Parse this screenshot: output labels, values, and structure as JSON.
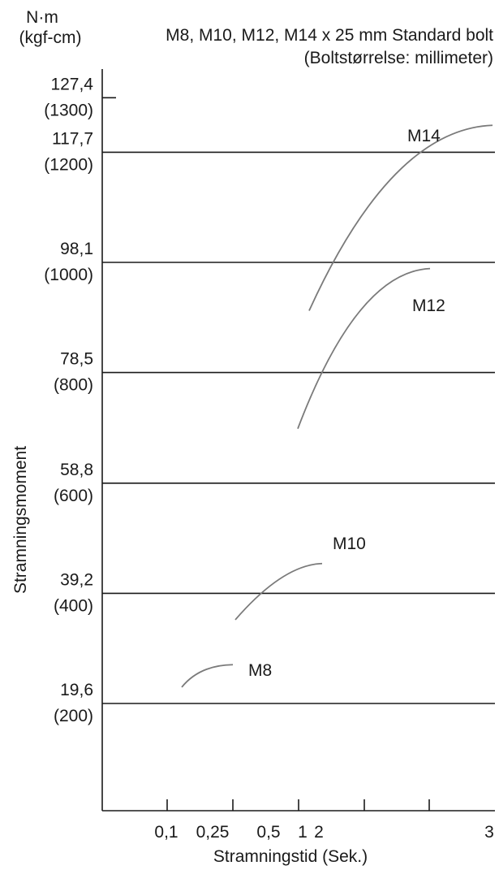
{
  "header": {
    "unit_top": "N·m",
    "unit_bottom": "(kgf-cm)",
    "title": "M8, M10, M12, M14 x 25 mm Standard bolt",
    "subtitle": "(Boltstørrelse: millimeter)"
  },
  "chart_data": {
    "type": "line",
    "title": "M8, M10, M12, M14 x 25 mm Standard bolt",
    "subtitle": "(Boltstørrelse: millimeter)",
    "xlabel": "Stramningstid (Sek.)",
    "ylabel": "Stramningsmoment",
    "y_unit_primary": "N·m",
    "y_unit_secondary": "(kgf-cm)",
    "x_tick_labels": [
      "0,1",
      "0,25",
      "0,5",
      "1",
      "2",
      "3"
    ],
    "y_ticks": [
      {
        "value": 19.6,
        "label": "19,6",
        "label_secondary": "(200)"
      },
      {
        "value": 39.2,
        "label": "39,2",
        "label_secondary": "(400)"
      },
      {
        "value": 58.8,
        "label": "58,8",
        "label_secondary": "(600)"
      },
      {
        "value": 78.5,
        "label": "78,5",
        "label_secondary": "(800)"
      },
      {
        "value": 98.1,
        "label": "98,1",
        "label_secondary": "(1000)"
      },
      {
        "value": 117.7,
        "label": "117,7",
        "label_secondary": "(1200)"
      },
      {
        "value": 127.4,
        "label": "127,4",
        "label_secondary": "(1300)"
      }
    ],
    "ylim": [
      0,
      133
    ],
    "grid": true,
    "series": [
      {
        "name": "M8",
        "x": [
          "0,1",
          "0,25"
        ],
        "y": [
          22.5,
          26.5
        ]
      },
      {
        "name": "M10",
        "x": [
          "0,25",
          "1"
        ],
        "y": [
          34.5,
          44.5
        ]
      },
      {
        "name": "M12",
        "x": [
          "1",
          "2"
        ],
        "y": [
          68.5,
          97
        ]
      },
      {
        "name": "M14",
        "x": [
          "1",
          "3"
        ],
        "y": [
          89.5,
          122.5
        ]
      }
    ]
  }
}
